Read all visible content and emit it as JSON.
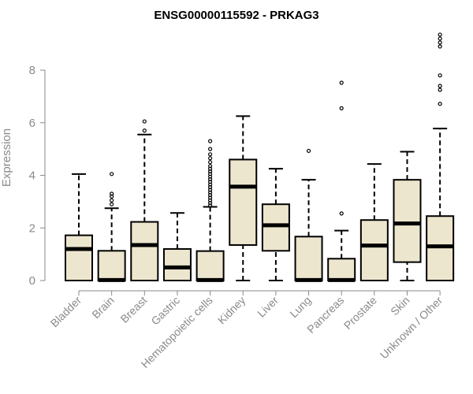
{
  "chart_data": {
    "type": "boxplot",
    "title": "ENSG00000115592 - PRKAG3",
    "ylabel": "Expression",
    "ylim": [
      0,
      9.4
    ],
    "yticks": [
      0,
      2,
      4,
      6,
      8
    ],
    "grid": false,
    "categories": [
      "Bladder",
      "Brain",
      "Breast",
      "Gastric",
      "Hematopoietic cells",
      "Kidney",
      "Liver",
      "Lung",
      "Pancreas",
      "Prostate",
      "Skin",
      "Unknown / Other"
    ],
    "series": [
      {
        "category": "Bladder",
        "min": 0,
        "q1": 0,
        "median": 1.2,
        "q3": 1.72,
        "max": 4.05,
        "outliers": []
      },
      {
        "category": "Brain",
        "min": 0,
        "q1": 0,
        "median": 0.02,
        "q3": 1.13,
        "max": 2.75,
        "outliers": [
          2.9,
          3.05,
          3.2,
          3.3,
          4.05
        ]
      },
      {
        "category": "Breast",
        "min": 0,
        "q1": 0,
        "median": 1.35,
        "q3": 2.23,
        "max": 5.55,
        "outliers": [
          5.7,
          6.05
        ]
      },
      {
        "category": "Gastric",
        "min": 0,
        "q1": 0,
        "median": 0.5,
        "q3": 1.2,
        "max": 2.57,
        "outliers": []
      },
      {
        "category": "Hematopoietic cells",
        "min": 0,
        "q1": 0,
        "median": 0.02,
        "q3": 1.12,
        "max": 2.8,
        "outliers": [
          2.85,
          2.95,
          3.05,
          3.15,
          3.25,
          3.35,
          3.45,
          3.55,
          3.65,
          3.75,
          3.85,
          3.95,
          4.05,
          4.15,
          4.25,
          4.35,
          4.5,
          4.65,
          4.8,
          5.0,
          5.3
        ]
      },
      {
        "category": "Kidney",
        "min": 0,
        "q1": 1.35,
        "median": 3.57,
        "q3": 4.6,
        "max": 6.25,
        "outliers": []
      },
      {
        "category": "Liver",
        "min": 0,
        "q1": 1.13,
        "median": 2.1,
        "q3": 2.9,
        "max": 4.25,
        "outliers": []
      },
      {
        "category": "Lung",
        "min": 0,
        "q1": 0,
        "median": 0.02,
        "q3": 1.67,
        "max": 3.83,
        "outliers": [
          4.93
        ]
      },
      {
        "category": "Pancreas",
        "min": 0,
        "q1": 0,
        "median": 0.02,
        "q3": 0.83,
        "max": 1.9,
        "outliers": [
          2.55,
          6.55,
          7.52
        ]
      },
      {
        "category": "Prostate",
        "min": 0,
        "q1": 0,
        "median": 1.33,
        "q3": 2.3,
        "max": 4.43,
        "outliers": []
      },
      {
        "category": "Skin",
        "min": 0,
        "q1": 0.7,
        "median": 2.17,
        "q3": 3.83,
        "max": 4.9,
        "outliers": []
      },
      {
        "category": "Unknown / Other",
        "min": 0,
        "q1": 0,
        "median": 1.3,
        "q3": 2.45,
        "max": 5.78,
        "outliers": [
          6.72,
          7.25,
          7.4,
          7.8,
          8.9,
          9.05,
          9.2,
          9.35
        ]
      }
    ]
  }
}
